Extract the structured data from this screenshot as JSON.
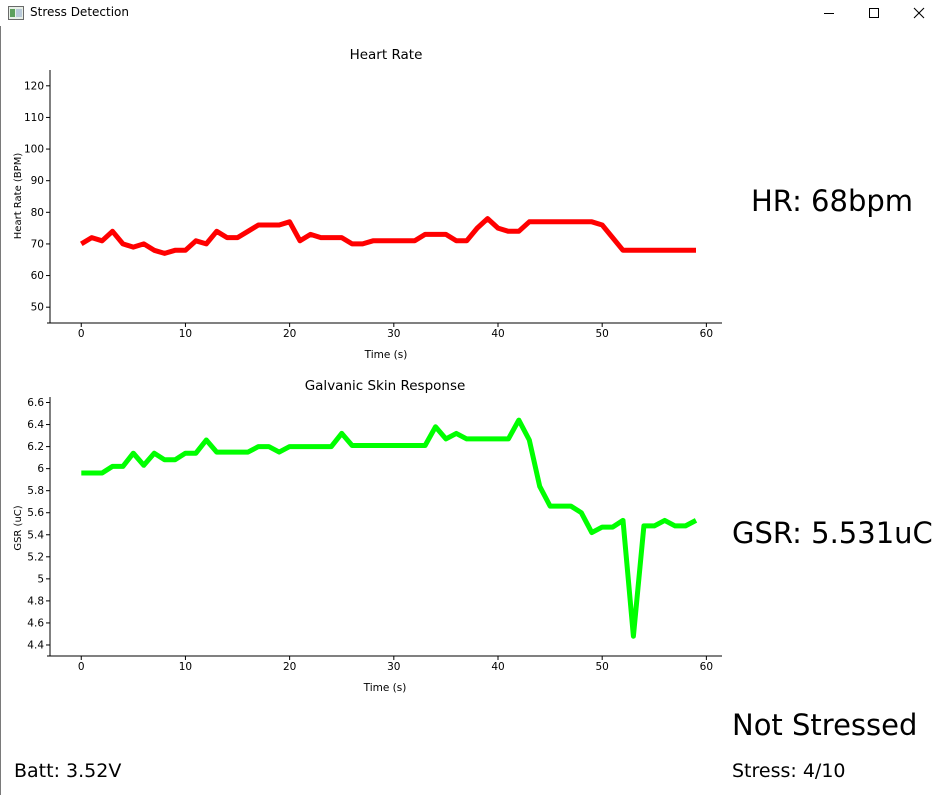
{
  "window": {
    "title": "Stress Detection"
  },
  "readouts": {
    "hr": "HR: 68bpm",
    "gsr": "GSR: 5.531uC",
    "status": "Not Stressed",
    "stress": "Stress: 4/10",
    "battery": "Batt: 3.52V"
  },
  "colors": {
    "hr_line": "#ff0000",
    "gsr_line": "#00ff00"
  },
  "chart_data": [
    {
      "type": "line",
      "title": "Heart Rate",
      "xlabel": "Time (s)",
      "ylabel": "Heart Rate (BPM)",
      "xlim": [
        -3,
        61.5
      ],
      "ylim": [
        45,
        125
      ],
      "xticks": [
        0,
        10,
        20,
        30,
        40,
        50,
        60
      ],
      "yticks": [
        50,
        60,
        70,
        80,
        90,
        100,
        110,
        120
      ],
      "ytick_labels": [
        "50",
        "60",
        "70",
        "80",
        "90",
        "100",
        "110",
        "120"
      ],
      "grid": false,
      "series": [
        {
          "color": "#ff0000",
          "x": [
            0,
            1,
            2,
            3,
            4,
            5,
            6,
            7,
            8,
            9,
            10,
            11,
            12,
            13,
            14,
            15,
            16,
            17,
            18,
            19,
            20,
            21,
            22,
            23,
            24,
            25,
            26,
            27,
            28,
            29,
            30,
            31,
            32,
            33,
            34,
            35,
            36,
            37,
            38,
            39,
            40,
            41,
            42,
            43,
            44,
            45,
            46,
            47,
            48,
            49,
            50,
            51,
            52,
            53,
            54,
            55,
            56,
            57,
            58,
            59
          ],
          "y": [
            70,
            72,
            71,
            74,
            70,
            69,
            70,
            68,
            67,
            68,
            68,
            71,
            70,
            74,
            72,
            72,
            74,
            76,
            76,
            76,
            77,
            71,
            73,
            72,
            72,
            72,
            70,
            70,
            71,
            71,
            71,
            71,
            71,
            73,
            73,
            73,
            71,
            71,
            75,
            78,
            75,
            74,
            74,
            77,
            77,
            77,
            77,
            77,
            77,
            77,
            76,
            72,
            68,
            68,
            68,
            68,
            68,
            68,
            68,
            68
          ]
        }
      ]
    },
    {
      "type": "line",
      "title": "Galvanic Skin Response",
      "xlabel": "Time (s)",
      "ylabel": "GSR (uC)",
      "xlim": [
        -3,
        61.5
      ],
      "ylim": [
        4.3,
        6.65
      ],
      "xticks": [
        0,
        10,
        20,
        30,
        40,
        50,
        60
      ],
      "yticks": [
        4.4,
        4.6,
        4.8,
        5,
        5.2,
        5.4,
        5.6,
        5.8,
        6,
        6.2,
        6.4,
        6.6
      ],
      "ytick_labels": [
        "4.4",
        "4.6",
        "4.8",
        "5",
        "5.2",
        "5.4",
        "5.6",
        "5.8",
        "6",
        "6.2",
        "6.4",
        "6.6"
      ],
      "grid": false,
      "series": [
        {
          "color": "#00ff00",
          "x": [
            0,
            1,
            2,
            3,
            4,
            5,
            6,
            7,
            8,
            9,
            10,
            11,
            12,
            13,
            14,
            15,
            16,
            17,
            18,
            19,
            20,
            21,
            22,
            23,
            24,
            25,
            26,
            27,
            28,
            29,
            30,
            31,
            32,
            33,
            34,
            35,
            36,
            37,
            38,
            39,
            40,
            41,
            42,
            43,
            44,
            45,
            46,
            47,
            48,
            49,
            50,
            51,
            52,
            53,
            54,
            55,
            56,
            57,
            58,
            59
          ],
          "y": [
            5.96,
            5.96,
            5.96,
            6.02,
            6.02,
            6.14,
            6.03,
            6.14,
            6.08,
            6.08,
            6.14,
            6.14,
            6.26,
            6.15,
            6.15,
            6.15,
            6.15,
            6.2,
            6.2,
            6.15,
            6.2,
            6.2,
            6.2,
            6.2,
            6.2,
            6.32,
            6.21,
            6.21,
            6.21,
            6.21,
            6.21,
            6.21,
            6.21,
            6.21,
            6.38,
            6.27,
            6.32,
            6.27,
            6.27,
            6.27,
            6.27,
            6.27,
            6.44,
            6.26,
            5.84,
            5.66,
            5.66,
            5.66,
            5.6,
            5.42,
            5.47,
            5.47,
            5.53,
            4.48,
            5.48,
            5.48,
            5.53,
            5.48,
            5.48,
            5.53
          ]
        }
      ]
    }
  ]
}
